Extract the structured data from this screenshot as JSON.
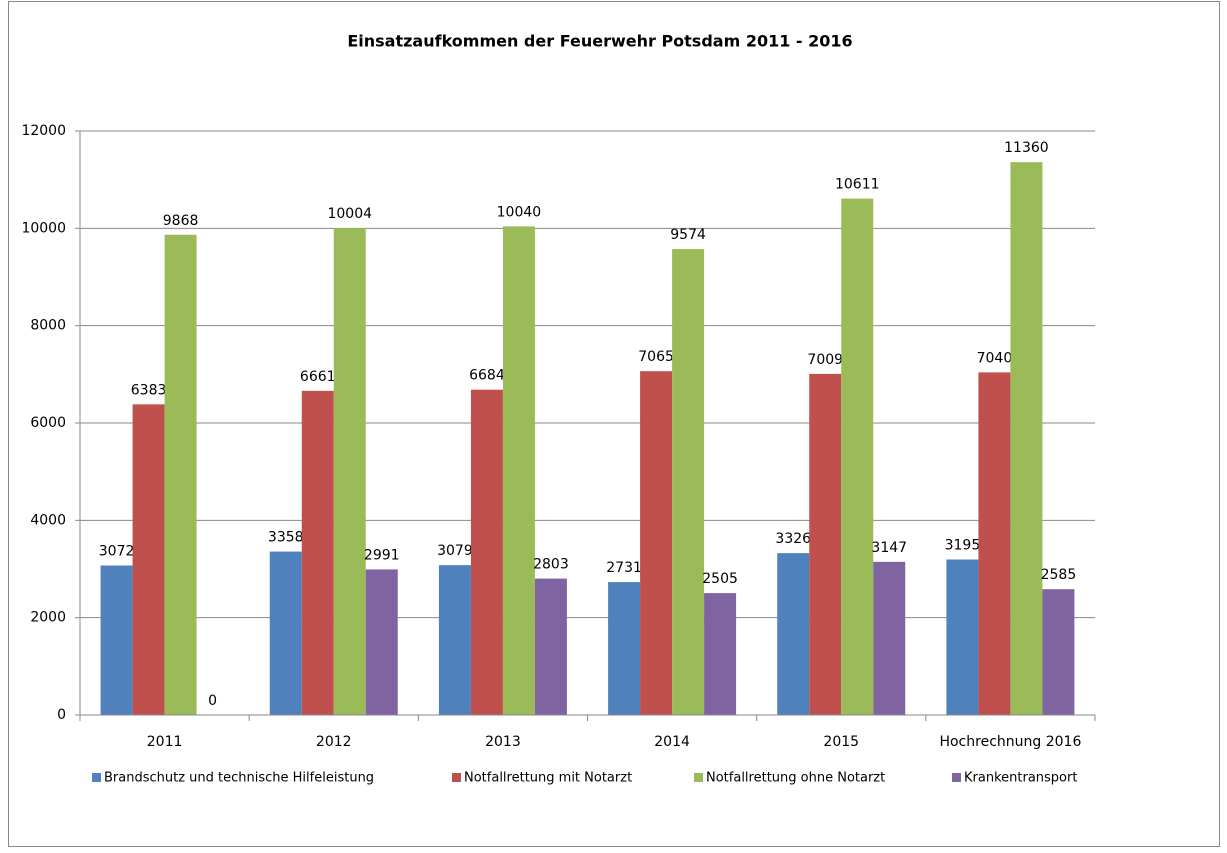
{
  "chart_data": {
    "type": "bar",
    "title": "Einsatzaufkommen der Feuerwehr Potsdam 2011 - 2016",
    "categories": [
      "2011",
      "2012",
      "2013",
      "2014",
      "2015",
      "Hochrechnung 2016"
    ],
    "series": [
      {
        "name": "Brandschutz und technische Hilfeleistung",
        "color": "#4f81bd",
        "values": [
          3072,
          3358,
          3079,
          2731,
          3326,
          3195
        ]
      },
      {
        "name": "Notfallrettung mit Notarzt",
        "color": "#c0504d",
        "values": [
          6383,
          6661,
          6684,
          7065,
          7009,
          7040
        ]
      },
      {
        "name": "Notfallrettung ohne Notarzt",
        "color": "#9bbb59",
        "values": [
          9868,
          10004,
          10040,
          9574,
          10611,
          11360
        ]
      },
      {
        "name": "Krankentransport",
        "color": "#8064a2",
        "values": [
          0,
          2991,
          2803,
          2505,
          3147,
          2585
        ]
      }
    ],
    "ylim": [
      0,
      12000
    ],
    "yticks": [
      0,
      2000,
      4000,
      6000,
      8000,
      10000,
      12000
    ],
    "grid": true,
    "legend": "bottom"
  }
}
